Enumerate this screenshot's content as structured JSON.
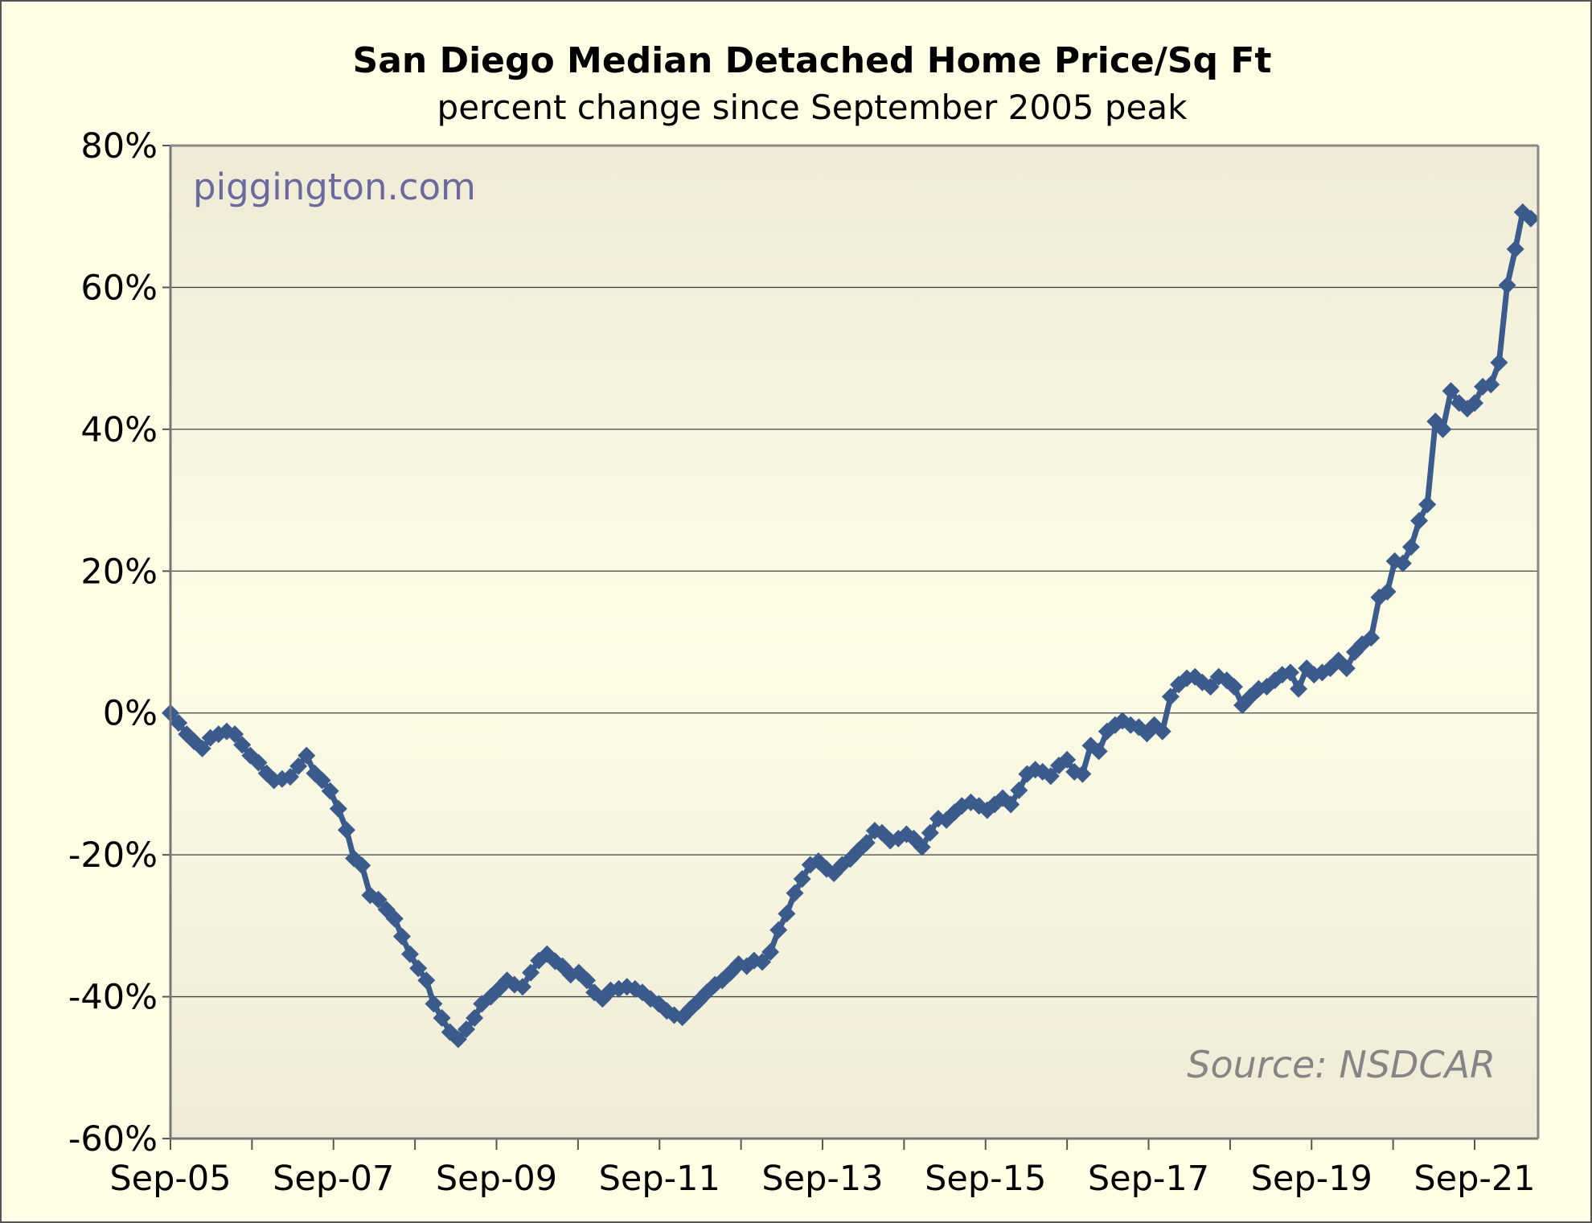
{
  "chart_data": {
    "type": "line",
    "title": "San Diego Median Detached Home Price/Sq Ft",
    "subtitle": "percent change since September 2005 peak",
    "watermark": "piggington.com",
    "source": "Source: NSDCAR",
    "xlabel": "",
    "ylabel": "",
    "ylim": [
      -60,
      80
    ],
    "yticks": [
      -60,
      -40,
      -20,
      0,
      20,
      40,
      60,
      80
    ],
    "ytick_labels": [
      "-60%",
      "-40%",
      "-20%",
      "0%",
      "20%",
      "40%",
      "60%",
      "80%"
    ],
    "xlim": [
      2005.67,
      2022.45
    ],
    "xticks_labeled": [
      2005.67,
      2007.67,
      2009.67,
      2011.67,
      2013.67,
      2015.67,
      2017.67,
      2019.67,
      2021.67
    ],
    "xtick_labels": [
      "Sep-05",
      "Sep-07",
      "Sep-09",
      "Sep-11",
      "Sep-13",
      "Sep-15",
      "Sep-17",
      "Sep-19",
      "Sep-21"
    ],
    "xticks_minor": [
      2006.67,
      2008.67,
      2010.67,
      2012.67,
      2014.67,
      2016.67,
      2018.67,
      2020.67
    ],
    "grid": "horizontal",
    "colors": {
      "line": "#3a5b8c",
      "background": "#ffffe6",
      "plot_edge": "#eeead6",
      "plot_mid": "#fdfde6",
      "watermark": "#6a6a9e",
      "source": "#858585"
    },
    "series": [
      {
        "marker": "diamond",
        "x": [
          2005.67,
          2005.77,
          2005.87,
          2005.96,
          2006.06,
          2006.16,
          2006.26,
          2006.36,
          2006.46,
          2006.55,
          2006.65,
          2006.75,
          2006.85,
          2006.94,
          2007.04,
          2007.14,
          2007.24,
          2007.34,
          2007.44,
          2007.53,
          2007.63,
          2007.73,
          2007.83,
          2007.92,
          2008.02,
          2008.12,
          2008.22,
          2008.32,
          2008.42,
          2008.51,
          2008.61,
          2008.71,
          2008.81,
          2008.9,
          2009.0,
          2009.1,
          2009.2,
          2009.3,
          2009.4,
          2009.49,
          2009.6,
          2009.7,
          2009.8,
          2009.89,
          2009.99,
          2010.09,
          2010.19,
          2010.29,
          2010.39,
          2010.48,
          2010.58,
          2010.68,
          2010.78,
          2010.87,
          2010.97,
          2011.07,
          2011.17,
          2011.27,
          2011.37,
          2011.46,
          2011.56,
          2011.66,
          2011.76,
          2011.85,
          2011.95,
          2012.05,
          2012.15,
          2012.25,
          2012.35,
          2012.44,
          2012.54,
          2012.64,
          2012.74,
          2012.83,
          2012.93,
          2013.03,
          2013.13,
          2013.23,
          2013.33,
          2013.42,
          2013.52,
          2013.62,
          2013.72,
          2013.81,
          2013.91,
          2014.01,
          2014.11,
          2014.21,
          2014.31,
          2014.4,
          2014.5,
          2014.6,
          2014.7,
          2014.79,
          2014.89,
          2014.99,
          2015.09,
          2015.19,
          2015.29,
          2015.38,
          2015.49,
          2015.59,
          2015.69,
          2015.78,
          2015.88,
          2015.98,
          2016.08,
          2016.18,
          2016.28,
          2016.37,
          2016.47,
          2016.57,
          2016.67,
          2016.76,
          2016.86,
          2016.96,
          2017.06,
          2017.16,
          2017.26,
          2017.35,
          2017.45,
          2017.55,
          2017.65,
          2017.74,
          2017.84,
          2017.94,
          2018.04,
          2018.14,
          2018.24,
          2018.33,
          2018.43,
          2018.53,
          2018.63,
          2018.72,
          2018.82,
          2018.92,
          2019.02,
          2019.12,
          2019.22,
          2019.31,
          2019.41,
          2019.51,
          2019.61,
          2019.7,
          2019.8,
          2019.9,
          2020.0,
          2020.1,
          2020.2,
          2020.29,
          2020.4,
          2020.5,
          2020.6,
          2020.69,
          2020.79,
          2020.89,
          2020.99,
          2021.09,
          2021.19,
          2021.28,
          2021.38,
          2021.48,
          2021.58,
          2021.67,
          2021.77,
          2021.87,
          2021.97,
          2022.07,
          2022.17,
          2022.26,
          2022.36
        ],
        "values": [
          0,
          -1.4,
          -3,
          -4,
          -5,
          -3.5,
          -3,
          -2.6,
          -3,
          -4.5,
          -6,
          -7,
          -8.5,
          -9.5,
          -9.3,
          -9,
          -7.5,
          -6,
          -8.5,
          -9.5,
          -11,
          -13.5,
          -16.5,
          -20.5,
          -21.5,
          -25.7,
          -26.3,
          -27.7,
          -29,
          -31.5,
          -34,
          -36,
          -37.7,
          -41,
          -43,
          -45,
          -46,
          -44.6,
          -43,
          -41,
          -40,
          -38.9,
          -37.7,
          -38.3,
          -38.6,
          -36.6,
          -34.9,
          -34,
          -35,
          -35.7,
          -36.9,
          -36.6,
          -37.7,
          -39.4,
          -40.3,
          -39.1,
          -38.9,
          -38.6,
          -38.9,
          -39.4,
          -40.3,
          -41,
          -42,
          -42.6,
          -42.9,
          -41.7,
          -40.6,
          -39.4,
          -38.3,
          -37.7,
          -36.6,
          -35.4,
          -35.7,
          -34.9,
          -35.1,
          -33.7,
          -30.6,
          -28.3,
          -25.4,
          -23.4,
          -21.4,
          -20.9,
          -22,
          -22.6,
          -21.4,
          -20.6,
          -19.4,
          -18.3,
          -16.6,
          -16.9,
          -18,
          -17.7,
          -17.1,
          -17.7,
          -18.9,
          -16.9,
          -14.9,
          -15.1,
          -14,
          -13.1,
          -12.6,
          -13.1,
          -13.7,
          -12.9,
          -12,
          -12.9,
          -10.9,
          -8.6,
          -8,
          -8.3,
          -8.9,
          -7.4,
          -6.6,
          -8.3,
          -8.6,
          -4.6,
          -5.4,
          -2.6,
          -1.7,
          -1.1,
          -1.7,
          -2,
          -2.9,
          -1.7,
          -2.6,
          2.3,
          4,
          4.9,
          5.1,
          4.3,
          3.7,
          5.1,
          4.6,
          3.7,
          1.1,
          2.3,
          3.4,
          3.7,
          4.6,
          5.4,
          5.7,
          3.4,
          6.3,
          5.4,
          5.7,
          6.3,
          7.4,
          6.3,
          8.6,
          9.7,
          10.6,
          16.3,
          17.1,
          21.4,
          21.1,
          23.4,
          27.1,
          29.4,
          41.1,
          40,
          45.4,
          43.7,
          42.9,
          43.7,
          46,
          46.3,
          49.4,
          60.3,
          65.4,
          70.6,
          69.7
        ]
      }
    ]
  }
}
